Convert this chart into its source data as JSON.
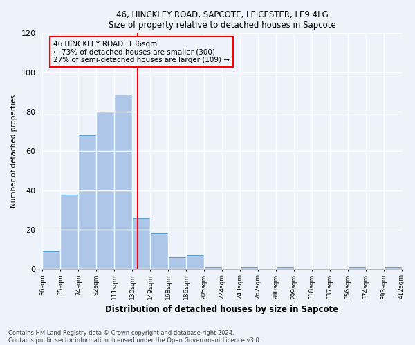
{
  "title1": "46, HINCKLEY ROAD, SAPCOTE, LEICESTER, LE9 4LG",
  "title2": "Size of property relative to detached houses in Sapcote",
  "xlabel": "Distribution of detached houses by size in Sapcote",
  "ylabel": "Number of detached properties",
  "categories": [
    "36sqm",
    "55sqm",
    "74sqm",
    "92sqm",
    "111sqm",
    "130sqm",
    "149sqm",
    "168sqm",
    "186sqm",
    "205sqm",
    "224sqm",
    "243sqm",
    "262sqm",
    "280sqm",
    "299sqm",
    "318sqm",
    "337sqm",
    "356sqm",
    "374sqm",
    "393sqm",
    "412sqm"
  ],
  "values": [
    9,
    38,
    68,
    80,
    89,
    26,
    18,
    6,
    7,
    1,
    0,
    1,
    0,
    1,
    0,
    0,
    0,
    1,
    0,
    1
  ],
  "bar_color": "#aec6e8",
  "bar_edge_color": "#5a9fd4",
  "reference_value": 136,
  "annotation_text": "46 HINCKLEY ROAD: 136sqm\n← 73% of detached houses are smaller (300)\n27% of semi-detached houses are larger (109) →",
  "ylim": [
    0,
    120
  ],
  "yticks": [
    0,
    20,
    40,
    60,
    80,
    100,
    120
  ],
  "footnote1": "Contains HM Land Registry data © Crown copyright and database right 2024.",
  "footnote2": "Contains public sector information licensed under the Open Government Licence v3.0.",
  "background_color": "#eef2fb",
  "grid_color": "#ffffff"
}
